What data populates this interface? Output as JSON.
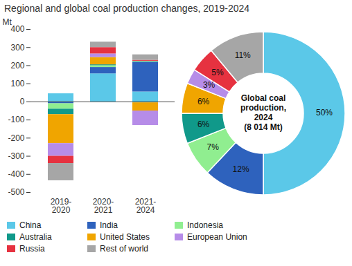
{
  "chart_data": [
    {
      "type": "bar",
      "title": "Regional and global coal production changes, 2019-2024",
      "stacked": true,
      "legend": "bottom",
      "grid": false,
      "ylabel": "Mt",
      "categories": [
        "2019-2020",
        "2020-2021",
        "2021-2024"
      ],
      "ylim": [
        -500,
        400
      ],
      "yticks": [
        -500,
        -400,
        -300,
        -200,
        -100,
        0,
        100,
        200,
        300,
        400
      ],
      "series": [
        {
          "name": "China",
          "color": "#5bc8e8",
          "values": [
            45,
            155,
            55
          ]
        },
        {
          "name": "India",
          "color": "#2e62bd",
          "values": [
            -10,
            35,
            165
          ]
        },
        {
          "name": "Indonesia",
          "color": "#90ee90",
          "values": [
            -30,
            10,
            5
          ]
        },
        {
          "name": "Australia",
          "color": "#10998a",
          "values": [
            -30,
            5,
            -5
          ]
        },
        {
          "name": "United States",
          "color": "#f0a500",
          "values": [
            -160,
            40,
            -45
          ]
        },
        {
          "name": "European Union",
          "color": "#b68ce8",
          "values": [
            -70,
            20,
            -80
          ]
        },
        {
          "name": "Russia",
          "color": "#e63240",
          "values": [
            -40,
            35,
            5
          ]
        },
        {
          "name": "Rest of world",
          "color": "#a6a6a6",
          "values": [
            -95,
            30,
            30
          ]
        }
      ]
    },
    {
      "type": "pie",
      "donut": true,
      "data_labels": true,
      "center_text": [
        "Global coal",
        "production,",
        "2024",
        "(8 014 Mt)"
      ],
      "categories": [
        "China",
        "India",
        "Indonesia",
        "Australia",
        "United States",
        "European Union",
        "Russia",
        "Rest of world"
      ],
      "values": [
        50,
        12,
        7,
        6,
        6,
        3,
        5,
        11
      ],
      "value_labels": [
        "50%",
        "12%",
        "7%",
        "6%",
        "6%",
        "3%",
        "5%",
        "11%"
      ],
      "colors": [
        "#5bc8e8",
        "#2e62bd",
        "#90ee90",
        "#10998a",
        "#f0a500",
        "#b68ce8",
        "#e63240",
        "#a6a6a6"
      ]
    }
  ]
}
